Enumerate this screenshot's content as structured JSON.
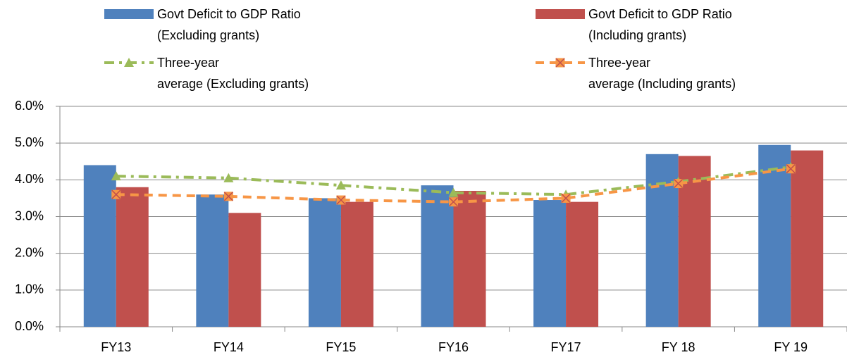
{
  "chart_data": {
    "type": "bar",
    "categories": [
      "FY13",
      "FY14",
      "FY15",
      "FY16",
      "FY17",
      "FY 18",
      "FY 19"
    ],
    "series": [
      {
        "name": "Govt Deficit to GDP Ratio\n(Excluding grants)",
        "type": "bar",
        "color": "#4f81bd",
        "values": [
          4.4,
          3.6,
          3.5,
          3.85,
          3.45,
          4.7,
          4.95
        ]
      },
      {
        "name": "Govt Deficit to GDP Ratio\n(Including grants)",
        "type": "bar",
        "color": "#c0504d",
        "values": [
          3.8,
          3.1,
          3.4,
          3.7,
          3.4,
          4.65,
          4.8
        ]
      },
      {
        "name": "Three-year\naverage (Excluding grants)",
        "type": "line",
        "marker": "triangle",
        "dash": "dash-dot",
        "color": "#9bbb59",
        "values": [
          4.1,
          4.05,
          3.85,
          3.65,
          3.6,
          3.95,
          4.35
        ]
      },
      {
        "name": "Three-year\naverage (Including grants)",
        "type": "line",
        "marker": "x-square",
        "dash": "dash",
        "color": "#f79646",
        "values": [
          3.6,
          3.55,
          3.45,
          3.4,
          3.5,
          3.9,
          4.3
        ]
      }
    ],
    "ylim": [
      0,
      6
    ],
    "yticks": [
      {
        "value": 0,
        "label": "0.0%"
      },
      {
        "value": 1,
        "label": "1.0%"
      },
      {
        "value": 2,
        "label": "2.0%"
      },
      {
        "value": 3,
        "label": "3.0%"
      },
      {
        "value": 4,
        "label": "4.0%"
      },
      {
        "value": 5,
        "label": "5.0%"
      },
      {
        "value": 6,
        "label": "6.0%"
      }
    ],
    "grid": true,
    "legend": "top"
  }
}
